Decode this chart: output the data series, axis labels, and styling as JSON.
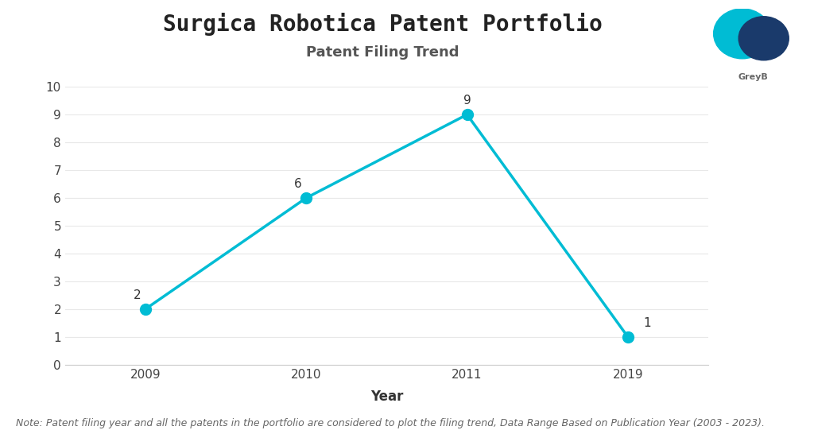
{
  "title": "Surgica Robotica Patent Portfolio",
  "subtitle": "Patent Filing Trend",
  "xlabel": "Year",
  "years": [
    "2009",
    "2010",
    "2011",
    "2019"
  ],
  "values": [
    2,
    6,
    9,
    1
  ],
  "line_color": "#00BCD4",
  "marker_color": "#00BCD4",
  "marker_size": 10,
  "line_width": 2.5,
  "ylim": [
    0,
    10
  ],
  "yticks": [
    0,
    1,
    2,
    3,
    4,
    5,
    6,
    7,
    8,
    9,
    10
  ],
  "background_color": "#ffffff",
  "title_fontsize": 20,
  "subtitle_fontsize": 13,
  "subtitle_color": "#555555",
  "axis_label_fontsize": 12,
  "tick_fontsize": 11,
  "annotation_fontsize": 11,
  "note_text": "Note: Patent filing year and all the patents in the portfolio are considered to plot the filing trend, Data Range Based on Publication Year (2003 - 2023).",
  "note_fontsize": 9,
  "note_color": "#666666",
  "grid_color": "#e8e8e8"
}
